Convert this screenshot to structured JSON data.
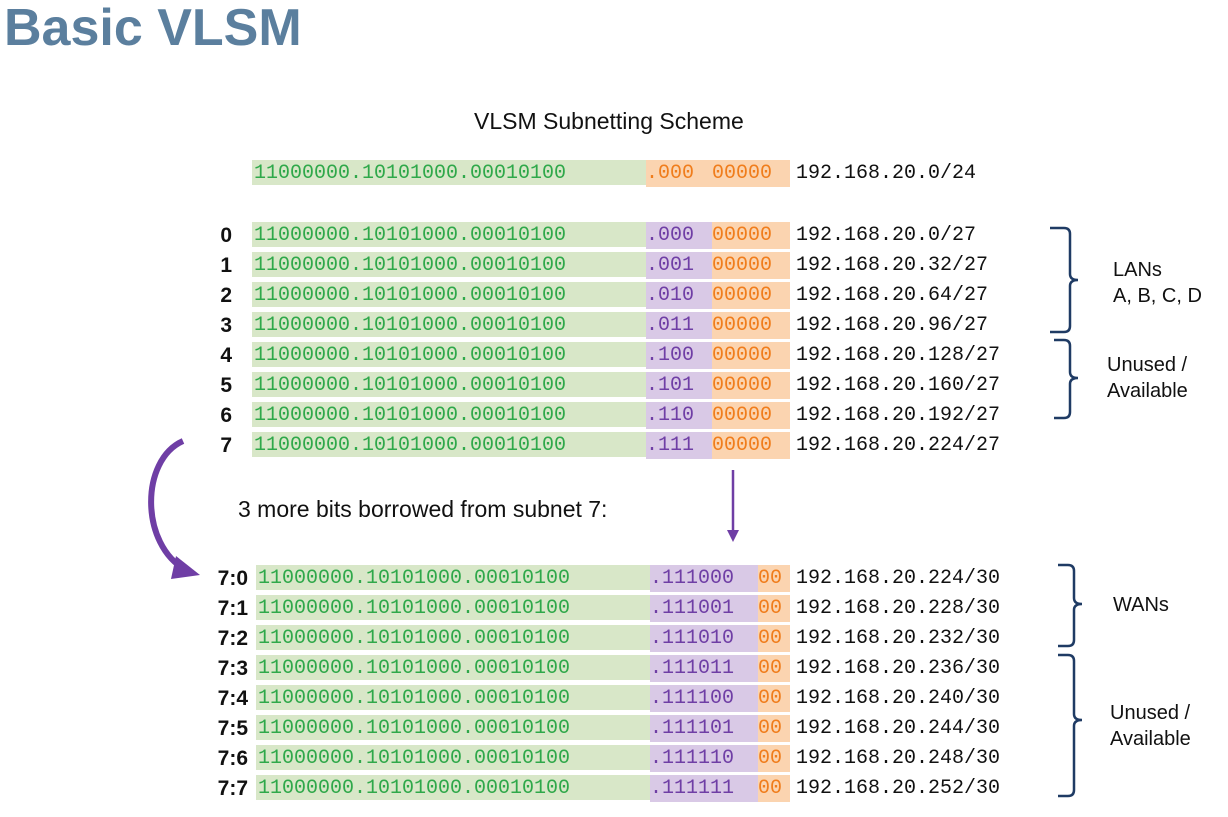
{
  "title": "Basic VLSM",
  "subtitle": "VLSM Subnetting  Scheme",
  "note": "3 more bits borrowed from subnet 7:",
  "colors": {
    "title": "#5b7f9e",
    "network_bg": "#d8e7c8",
    "network_text": "#2fa84a",
    "subnet_bg": "#d9c9e6",
    "subnet_text": "#6f3ea5",
    "host_bg": "#fbd4b0",
    "host_text": "#f07d1c",
    "bracket": "#1f3b64",
    "arrow": "#6f3ea5"
  },
  "base": {
    "network": "11000000.10101000.00010100",
    "subnet": ".000",
    "host": "00000",
    "address": "192.168.20.0/24"
  },
  "rows27": [
    {
      "label": "0",
      "network": "11000000.10101000.00010100",
      "subnet": ".000",
      "host": "00000",
      "address": "192.168.20.0/27"
    },
    {
      "label": "1",
      "network": "11000000.10101000.00010100",
      "subnet": ".001",
      "host": "00000",
      "address": "192.168.20.32/27"
    },
    {
      "label": "2",
      "network": "11000000.10101000.00010100",
      "subnet": ".010",
      "host": "00000",
      "address": "192.168.20.64/27"
    },
    {
      "label": "3",
      "network": "11000000.10101000.00010100",
      "subnet": ".011",
      "host": "00000",
      "address": "192.168.20.96/27"
    },
    {
      "label": "4",
      "network": "11000000.10101000.00010100",
      "subnet": ".100",
      "host": "00000",
      "address": "192.168.20.128/27"
    },
    {
      "label": "5",
      "network": "11000000.10101000.00010100",
      "subnet": ".101",
      "host": "00000",
      "address": "192.168.20.160/27"
    },
    {
      "label": "6",
      "network": "11000000.10101000.00010100",
      "subnet": ".110",
      "host": "00000",
      "address": "192.168.20.192/27"
    },
    {
      "label": "7",
      "network": "11000000.10101000.00010100",
      "subnet": ".111",
      "host": "00000",
      "address": "192.168.20.224/27"
    }
  ],
  "rows30": [
    {
      "label": "7:0",
      "network": "11000000.10101000.00010100",
      "subnet": ".111000",
      "host": "00",
      "address": "192.168.20.224/30"
    },
    {
      "label": "7:1",
      "network": "11000000.10101000.00010100",
      "subnet": ".111001",
      "host": "00",
      "address": "192.168.20.228/30"
    },
    {
      "label": "7:2",
      "network": "11000000.10101000.00010100",
      "subnet": ".111010",
      "host": "00",
      "address": "192.168.20.232/30"
    },
    {
      "label": "7:3",
      "network": "11000000.10101000.00010100",
      "subnet": ".111011",
      "host": "00",
      "address": "192.168.20.236/30"
    },
    {
      "label": "7:4",
      "network": "11000000.10101000.00010100",
      "subnet": ".111100",
      "host": "00",
      "address": "192.168.20.240/30"
    },
    {
      "label": "7:5",
      "network": "11000000.10101000.00010100",
      "subnet": ".111101",
      "host": "00",
      "address": "192.168.20.244/30"
    },
    {
      "label": "7:6",
      "network": "11000000.10101000.00010100",
      "subnet": ".111110",
      "host": "00",
      "address": "192.168.20.248/30"
    },
    {
      "label": "7:7",
      "network": "11000000.10101000.00010100",
      "subnet": ".111111",
      "host": "00",
      "address": "192.168.20.252/30"
    }
  ],
  "groups": {
    "lans_line1": "LANs",
    "lans_line2": "A, B, C, D",
    "unused27_line1": "Unused /",
    "unused27_line2": "Available",
    "wans": "WANs",
    "unused30_line1": "Unused /",
    "unused30_line2": "Available"
  }
}
